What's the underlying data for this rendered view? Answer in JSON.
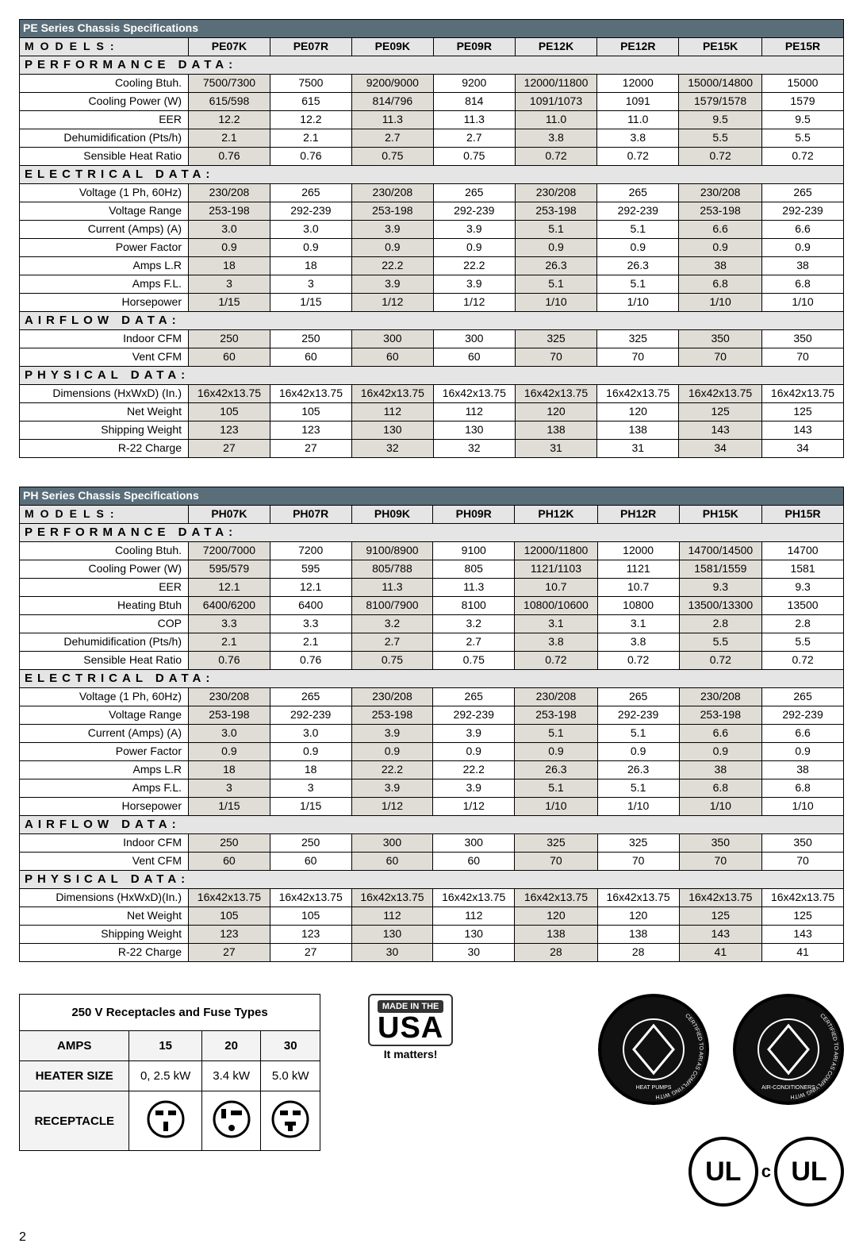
{
  "pe": {
    "title": "PE Series Chassis Specifications",
    "models_label": "MODELS:",
    "models": [
      "PE07K",
      "PE07R",
      "PE09K",
      "PE09R",
      "PE12K",
      "PE12R",
      "PE15K",
      "PE15R"
    ],
    "sections": [
      {
        "label": "PERFORMANCE  DATA:",
        "rows": [
          {
            "param": "Cooling Btuh.",
            "v": [
              "7500/7300",
              "7500",
              "9200/9000",
              "9200",
              "12000/11800",
              "12000",
              "15000/14800",
              "15000"
            ]
          },
          {
            "param": "Cooling Power (W)",
            "v": [
              "615/598",
              "615",
              "814/796",
              "814",
              "1091/1073",
              "1091",
              "1579/1578",
              "1579"
            ]
          },
          {
            "param": "EER",
            "v": [
              "12.2",
              "12.2",
              "11.3",
              "11.3",
              "11.0",
              "11.0",
              "9.5",
              "9.5"
            ]
          },
          {
            "param": "Dehumidification (Pts/h)",
            "v": [
              "2.1",
              "2.1",
              "2.7",
              "2.7",
              "3.8",
              "3.8",
              "5.5",
              "5.5"
            ]
          },
          {
            "param": "Sensible Heat Ratio",
            "v": [
              "0.76",
              "0.76",
              "0.75",
              "0.75",
              "0.72",
              "0.72",
              "0.72",
              "0.72"
            ]
          }
        ]
      },
      {
        "label": "ELECTRICAL  DATA:",
        "rows": [
          {
            "param": "Voltage (1 Ph, 60Hz)",
            "v": [
              "230/208",
              "265",
              "230/208",
              "265",
              "230/208",
              "265",
              "230/208",
              "265"
            ]
          },
          {
            "param": "Voltage Range",
            "v": [
              "253-198",
              "292-239",
              "253-198",
              "292-239",
              "253-198",
              "292-239",
              "253-198",
              "292-239"
            ]
          },
          {
            "param": "Current (Amps) (A)",
            "v": [
              "3.0",
              "3.0",
              "3.9",
              "3.9",
              "5.1",
              "5.1",
              "6.6",
              "6.6"
            ]
          },
          {
            "param": "Power Factor",
            "v": [
              "0.9",
              "0.9",
              "0.9",
              "0.9",
              "0.9",
              "0.9",
              "0.9",
              "0.9"
            ]
          },
          {
            "param": "Amps L.R",
            "v": [
              "18",
              "18",
              "22.2",
              "22.2",
              "26.3",
              "26.3",
              "38",
              "38"
            ]
          },
          {
            "param": "Amps F.L.",
            "v": [
              "3",
              "3",
              "3.9",
              "3.9",
              "5.1",
              "5.1",
              "6.8",
              "6.8"
            ]
          },
          {
            "param": "Horsepower",
            "v": [
              "1/15",
              "1/15",
              "1/12",
              "1/12",
              "1/10",
              "1/10",
              "1/10",
              "1/10"
            ]
          }
        ]
      },
      {
        "label": "AIRFLOW  DATA:",
        "rows": [
          {
            "param": "Indoor CFM",
            "v": [
              "250",
              "250",
              "300",
              "300",
              "325",
              "325",
              "350",
              "350"
            ]
          },
          {
            "param": "Vent CFM",
            "v": [
              "60",
              "60",
              "60",
              "60",
              "70",
              "70",
              "70",
              "70"
            ]
          }
        ]
      },
      {
        "label": "PHYSICAL  DATA:",
        "rows": [
          {
            "param": "Dimensions (HxWxD) (In.)",
            "v": [
              "16x42x13.75",
              "16x42x13.75",
              "16x42x13.75",
              "16x42x13.75",
              "16x42x13.75",
              "16x42x13.75",
              "16x42x13.75",
              "16x42x13.75"
            ]
          },
          {
            "param": "Net Weight",
            "v": [
              "105",
              "105",
              "112",
              "112",
              "120",
              "120",
              "125",
              "125"
            ]
          },
          {
            "param": "Shipping Weight",
            "v": [
              "123",
              "123",
              "130",
              "130",
              "138",
              "138",
              "143",
              "143"
            ]
          },
          {
            "param": "R-22 Charge",
            "v": [
              "27",
              "27",
              "32",
              "32",
              "31",
              "31",
              "34",
              "34"
            ]
          }
        ]
      }
    ]
  },
  "ph": {
    "title": "PH Series Chassis Specifications",
    "models_label": "MODELS:",
    "models": [
      "PH07K",
      "PH07R",
      "PH09K",
      "PH09R",
      "PH12K",
      "PH12R",
      "PH15K",
      "PH15R"
    ],
    "sections": [
      {
        "label": "PERFORMANCE  DATA:",
        "rows": [
          {
            "param": "Cooling Btuh.",
            "v": [
              "7200/7000",
              "7200",
              "9100/8900",
              "9100",
              "12000/11800",
              "12000",
              "14700/14500",
              "14700"
            ]
          },
          {
            "param": "Cooling Power (W)",
            "v": [
              "595/579",
              "595",
              "805/788",
              "805",
              "1121/1103",
              "1121",
              "1581/1559",
              "1581"
            ]
          },
          {
            "param": "EER",
            "v": [
              "12.1",
              "12.1",
              "11.3",
              "11.3",
              "10.7",
              "10.7",
              "9.3",
              "9.3"
            ]
          },
          {
            "param": "Heating Btuh",
            "v": [
              "6400/6200",
              "6400",
              "8100/7900",
              "8100",
              "10800/10600",
              "10800",
              "13500/13300",
              "13500"
            ]
          },
          {
            "param": "COP",
            "v": [
              "3.3",
              "3.3",
              "3.2",
              "3.2",
              "3.1",
              "3.1",
              "2.8",
              "2.8"
            ]
          },
          {
            "param": "Dehumidification (Pts/h)",
            "v": [
              "2.1",
              "2.1",
              "2.7",
              "2.7",
              "3.8",
              "3.8",
              "5.5",
              "5.5"
            ]
          },
          {
            "param": "Sensible Heat Ratio",
            "v": [
              "0.76",
              "0.76",
              "0.75",
              "0.75",
              "0.72",
              "0.72",
              "0.72",
              "0.72"
            ]
          }
        ]
      },
      {
        "label": "ELECTRICAL  DATA:",
        "rows": [
          {
            "param": "Voltage (1 Ph, 60Hz)",
            "v": [
              "230/208",
              "265",
              "230/208",
              "265",
              "230/208",
              "265",
              "230/208",
              "265"
            ]
          },
          {
            "param": "Voltage Range",
            "v": [
              "253-198",
              "292-239",
              "253-198",
              "292-239",
              "253-198",
              "292-239",
              "253-198",
              "292-239"
            ]
          },
          {
            "param": "Current (Amps) (A)",
            "v": [
              "3.0",
              "3.0",
              "3.9",
              "3.9",
              "5.1",
              "5.1",
              "6.6",
              "6.6"
            ]
          },
          {
            "param": "Power Factor",
            "v": [
              "0.9",
              "0.9",
              "0.9",
              "0.9",
              "0.9",
              "0.9",
              "0.9",
              "0.9"
            ]
          },
          {
            "param": "Amps L.R",
            "v": [
              "18",
              "18",
              "22.2",
              "22.2",
              "26.3",
              "26.3",
              "38",
              "38"
            ]
          },
          {
            "param": "Amps F.L.",
            "v": [
              "3",
              "3",
              "3.9",
              "3.9",
              "5.1",
              "5.1",
              "6.8",
              "6.8"
            ]
          },
          {
            "param": "Horsepower",
            "v": [
              "1/15",
              "1/15",
              "1/12",
              "1/12",
              "1/10",
              "1/10",
              "1/10",
              "1/10"
            ]
          }
        ]
      },
      {
        "label": "AIRFLOW  DATA:",
        "rows": [
          {
            "param": "Indoor CFM",
            "v": [
              "250",
              "250",
              "300",
              "300",
              "325",
              "325",
              "350",
              "350"
            ]
          },
          {
            "param": "Vent CFM",
            "v": [
              "60",
              "60",
              "60",
              "60",
              "70",
              "70",
              "70",
              "70"
            ]
          }
        ]
      },
      {
        "label": "PHYSICAL  DATA:",
        "rows": [
          {
            "param": "Dimensions (HxWxD)(In.)",
            "v": [
              "16x42x13.75",
              "16x42x13.75",
              "16x42x13.75",
              "16x42x13.75",
              "16x42x13.75",
              "16x42x13.75",
              "16x42x13.75",
              "16x42x13.75"
            ]
          },
          {
            "param": "Net Weight",
            "v": [
              "105",
              "105",
              "112",
              "112",
              "120",
              "120",
              "125",
              "125"
            ]
          },
          {
            "param": "Shipping Weight",
            "v": [
              "123",
              "123",
              "130",
              "130",
              "138",
              "138",
              "143",
              "143"
            ]
          },
          {
            "param": "R-22 Charge",
            "v": [
              "27",
              "27",
              "30",
              "30",
              "28",
              "28",
              "41",
              "41"
            ]
          }
        ]
      }
    ]
  },
  "receptacle": {
    "title": "250 V Receptacles and Fuse Types",
    "headers": [
      "AMPS",
      "15",
      "20",
      "30"
    ],
    "heater_label": "HEATER SIZE",
    "heater": [
      "0, 2.5 kW",
      "3.4 kW",
      "5.0 kW"
    ],
    "receptacle_label": "RECEPTACLE"
  },
  "usa": {
    "top": "MADE IN THE",
    "big": "USA",
    "sub": "It matters!"
  },
  "badges": {
    "hp_top": "CERTIFIED TO ARI AS COMPLYING WITH",
    "hp_mid": "HEAT PUMPS",
    "hp_bot": "CERTIFICATION SECTIONS OF ARI STANDARD 380",
    "ac_top": "CERTIFIED TO ARI AS COMPLYING WITH",
    "ac_mid": "AIR-CONDITIONERS",
    "ac_bot": "CERTIFICATION SECTIONS OF ARI STANDARD 310"
  },
  "ul": {
    "mark": "UL",
    "c": "c"
  },
  "page": "2",
  "shade_cols": [
    0,
    2,
    4,
    6
  ],
  "colors": {
    "header_bg": "#5a6e7a",
    "section_bg": "#e5e5e5",
    "shade_bg": "#e0ddd7"
  }
}
